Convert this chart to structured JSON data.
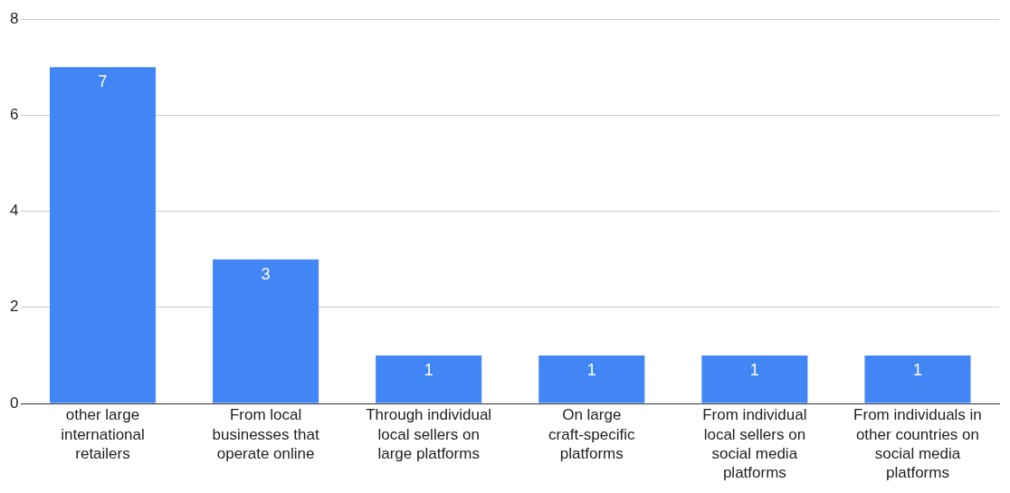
{
  "chart_data": {
    "type": "bar",
    "categories": [
      "other large international retailers",
      "From local businesses that operate online",
      "Through individual local sellers on large platforms",
      "On large craft-specific platforms",
      "From individual local sellers on social media platforms",
      "From individuals in other countries on social media platforms"
    ],
    "values": [
      7,
      3,
      1,
      1,
      1,
      1
    ],
    "color": "#4285f4",
    "ylim": [
      0,
      8
    ],
    "yticks": [
      0,
      2,
      4,
      6,
      8
    ],
    "grid": "y",
    "data_labels": true
  }
}
